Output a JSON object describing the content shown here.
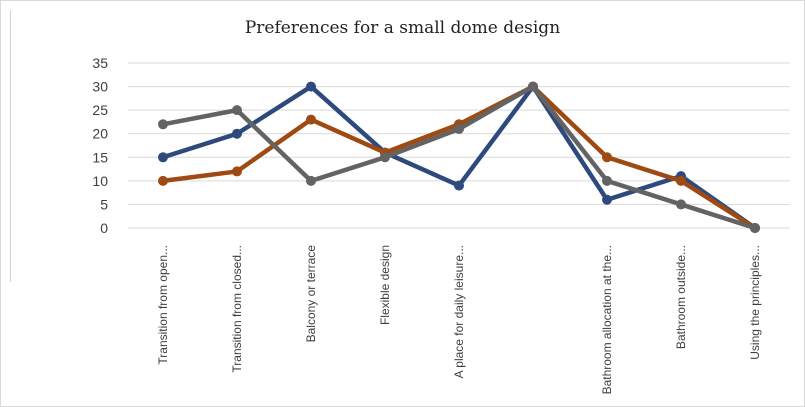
{
  "chart_data": {
    "type": "line",
    "title": "Preferences for a small dome design",
    "xlabel": "",
    "ylabel": "",
    "categories": [
      "Transition from open...",
      "Transition from closed...",
      "Balcony or terrace",
      "Flexible design",
      "A place for daily leisure...",
      "",
      "Bathroom allocation at the...",
      "Bathroom outside...",
      "Using the principles..."
    ],
    "ylim": [
      0,
      35
    ],
    "yticks": [
      0,
      5,
      10,
      15,
      20,
      25,
      30,
      35
    ],
    "grid": true,
    "legend": "none",
    "series": [
      {
        "color": "#2e4a7d",
        "values": [
          15,
          20,
          30,
          16,
          9,
          30,
          6,
          11,
          0
        ]
      },
      {
        "color": "#9e4a12",
        "values": [
          10,
          12,
          23,
          16,
          22,
          30,
          15,
          10,
          0
        ]
      },
      {
        "color": "#636363",
        "values": [
          22,
          25,
          10,
          15,
          21,
          30,
          10,
          5,
          0
        ]
      }
    ]
  }
}
